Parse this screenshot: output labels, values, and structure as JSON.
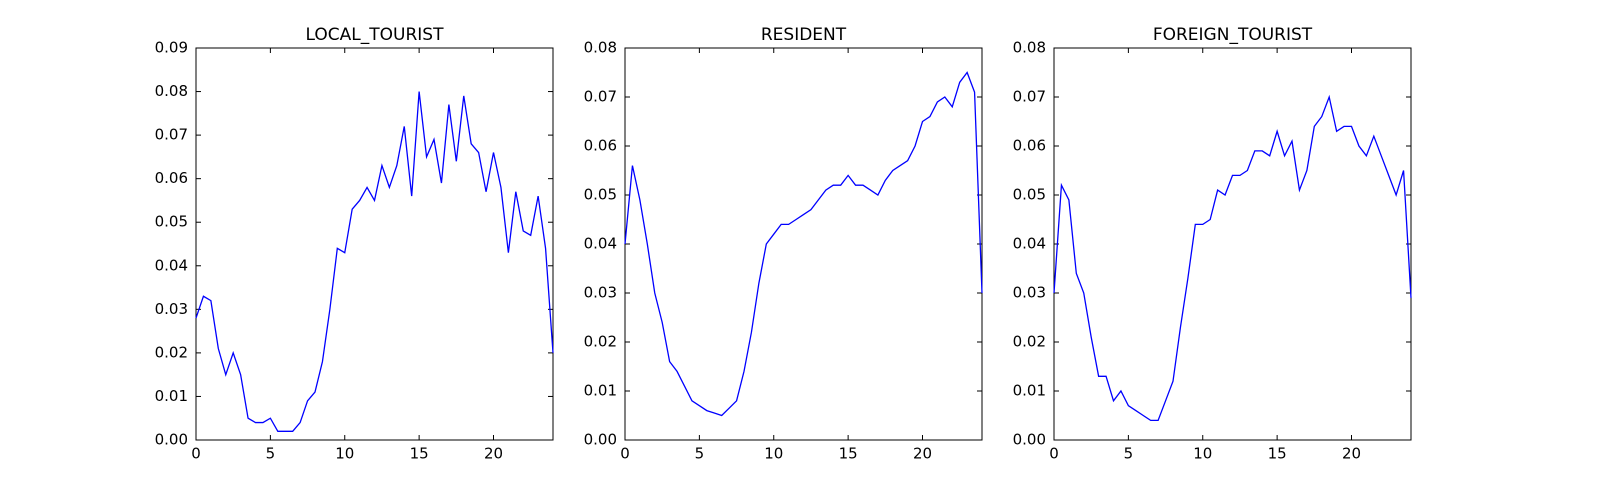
{
  "chart_data": [
    {
      "type": "line",
      "title": "LOCAL_TOURIST",
      "x": [
        0,
        0.5,
        1,
        1.5,
        2,
        2.5,
        3,
        3.5,
        4,
        4.5,
        5,
        5.5,
        6,
        6.5,
        7,
        7.5,
        8,
        8.5,
        9,
        9.5,
        10,
        10.5,
        11,
        11.5,
        12,
        12.5,
        13,
        13.5,
        14,
        14.5,
        15,
        15.5,
        16,
        16.5,
        17,
        17.5,
        18,
        18.5,
        19,
        19.5,
        20,
        20.5,
        21,
        21.5,
        22,
        22.5,
        23,
        23.5,
        24
      ],
      "series": [
        {
          "color": "#0000ff",
          "values": [
            0.028,
            0.033,
            0.032,
            0.021,
            0.015,
            0.02,
            0.015,
            0.005,
            0.004,
            0.004,
            0.005,
            0.002,
            0.002,
            0.002,
            0.004,
            0.009,
            0.011,
            0.018,
            0.03,
            0.044,
            0.043,
            0.053,
            0.055,
            0.058,
            0.055,
            0.063,
            0.058,
            0.063,
            0.072,
            0.056,
            0.08,
            0.065,
            0.069,
            0.059,
            0.077,
            0.064,
            0.079,
            0.068,
            0.066,
            0.057,
            0.066,
            0.058,
            0.043,
            0.057,
            0.048,
            0.047,
            0.056,
            0.044,
            0.02
          ]
        }
      ],
      "xlim": [
        0,
        24
      ],
      "xticks": [
        0,
        5,
        10,
        15,
        20
      ],
      "ylim": [
        0,
        0.09
      ],
      "yticks": [
        {
          "value": 0,
          "label": "0.00"
        },
        0.01,
        0.02,
        0.03,
        0.04,
        0.05,
        0.06,
        0.07,
        0.08,
        0.09
      ]
    },
    {
      "type": "line",
      "title": "RESIDENT",
      "x": [
        0,
        0.5,
        1,
        1.5,
        2,
        2.5,
        3,
        3.5,
        4,
        4.5,
        5,
        5.5,
        6,
        6.5,
        7,
        7.5,
        8,
        8.5,
        9,
        9.5,
        10,
        10.5,
        11,
        11.5,
        12,
        12.5,
        13,
        13.5,
        14,
        14.5,
        15,
        15.5,
        16,
        16.5,
        17,
        17.5,
        18,
        18.5,
        19,
        19.5,
        20,
        20.5,
        21,
        21.5,
        22,
        22.5,
        23,
        23.5,
        24
      ],
      "series": [
        {
          "color": "#0000ff",
          "values": [
            0.04,
            0.056,
            0.049,
            0.04,
            0.03,
            0.024,
            0.016,
            0.014,
            0.011,
            0.008,
            0.007,
            0.006,
            0.0055,
            0.005,
            0.0065,
            0.008,
            0.014,
            0.022,
            0.032,
            0.04,
            0.042,
            0.044,
            0.044,
            0.045,
            0.046,
            0.047,
            0.049,
            0.051,
            0.052,
            0.052,
            0.054,
            0.052,
            0.052,
            0.051,
            0.05,
            0.053,
            0.055,
            0.056,
            0.057,
            0.06,
            0.065,
            0.066,
            0.069,
            0.07,
            0.068,
            0.073,
            0.075,
            0.071,
            0.03
          ]
        }
      ],
      "xlim": [
        0,
        24
      ],
      "xticks": [
        0,
        5,
        10,
        15,
        20
      ],
      "ylim": [
        0,
        0.08
      ],
      "yticks": [
        {
          "value": 0,
          "label": "0.00"
        },
        0.01,
        0.02,
        0.03,
        0.04,
        0.05,
        0.06,
        0.07,
        0.08
      ]
    },
    {
      "type": "line",
      "title": "FOREIGN_TOURIST",
      "x": [
        0,
        0.5,
        1,
        1.5,
        2,
        2.5,
        3,
        3.5,
        4,
        4.5,
        5,
        5.5,
        6,
        6.5,
        7,
        7.5,
        8,
        8.5,
        9,
        9.5,
        10,
        10.5,
        11,
        11.5,
        12,
        12.5,
        13,
        13.5,
        14,
        14.5,
        15,
        15.5,
        16,
        16.5,
        17,
        17.5,
        18,
        18.5,
        19,
        19.5,
        20,
        20.5,
        21,
        21.5,
        22,
        22.5,
        23,
        23.5,
        24
      ],
      "series": [
        {
          "color": "#0000ff",
          "values": [
            0.03,
            0.052,
            0.049,
            0.034,
            0.03,
            0.021,
            0.013,
            0.013,
            0.008,
            0.01,
            0.007,
            0.006,
            0.005,
            0.004,
            0.004,
            0.008,
            0.012,
            0.023,
            0.033,
            0.044,
            0.044,
            0.045,
            0.051,
            0.05,
            0.054,
            0.054,
            0.055,
            0.059,
            0.059,
            0.058,
            0.063,
            0.058,
            0.061,
            0.051,
            0.055,
            0.064,
            0.066,
            0.07,
            0.063,
            0.064,
            0.064,
            0.06,
            0.058,
            0.062,
            0.058,
            0.054,
            0.05,
            0.055,
            0.029
          ]
        }
      ],
      "xlim": [
        0,
        24
      ],
      "xticks": [
        0,
        5,
        10,
        15,
        20
      ],
      "ylim": [
        0,
        0.08
      ],
      "yticks": [
        {
          "value": 0,
          "label": "0.00"
        },
        0.01,
        0.02,
        0.03,
        0.04,
        0.05,
        0.06,
        0.07,
        0.08
      ]
    }
  ]
}
